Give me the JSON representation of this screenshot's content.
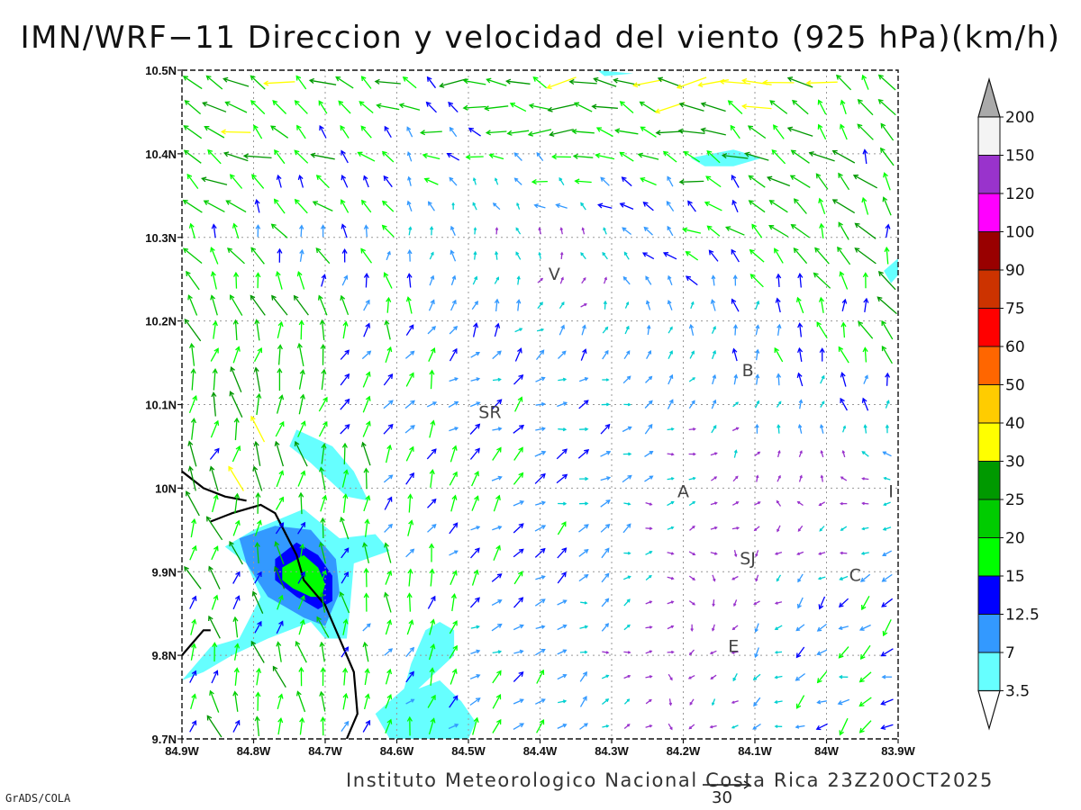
{
  "title": "IMN/WRF−11 Direccion y velocidad del viento (925 hPa)(km/h)",
  "footer": {
    "credit": "Instituto Meteorologico Nacional Costa Rica 23Z20OCT2025",
    "software": "GrADS/COLA",
    "reference_vector_label": "30"
  },
  "chart_data": {
    "type": "vector-field",
    "title": "IMN/WRF−11 Direccion y velocidad del viento (925 hPa)(km/h)",
    "x_ticks": [
      "84.9W",
      "84.8W",
      "84.7W",
      "84.6W",
      "84.5W",
      "84.4W",
      "84.3W",
      "84.2W",
      "84.1W",
      "84W",
      "83.9W"
    ],
    "y_ticks": [
      "10.5N",
      "10.4N",
      "10.3N",
      "10.2N",
      "10.1N",
      "10N",
      "9.9N",
      "9.8N",
      "9.7N"
    ],
    "xlim": [
      -84.9,
      -83.9
    ],
    "ylim": [
      9.7,
      10.5
    ],
    "grid": true,
    "reference_vector": 30,
    "colorbar": {
      "levels": [
        "200",
        "150",
        "120",
        "100",
        "90",
        "75",
        "60",
        "50",
        "40",
        "30",
        "25",
        "20",
        "15",
        "12.5",
        "7",
        "3.5"
      ],
      "colors": [
        "#f4f4f4",
        "#9933cc",
        "#ff00ff",
        "#990000",
        "#cc3300",
        "#ff0000",
        "#ff6600",
        "#ffcc00",
        "#ffff00",
        "#009900",
        "#00cc00",
        "#00ff00",
        "#0000ff",
        "#3399ff",
        "#66ffff"
      ],
      "top_color": "#aaaaaa",
      "bottom_color": "#ffffff"
    },
    "labels": [
      {
        "text": "V",
        "lon": -84.38,
        "lat": 10.255
      },
      {
        "text": "B",
        "lon": -84.11,
        "lat": 10.14
      },
      {
        "text": "SR",
        "lon": -84.47,
        "lat": 10.09
      },
      {
        "text": "A",
        "lon": -84.2,
        "lat": 9.995
      },
      {
        "text": "I",
        "lon": -83.91,
        "lat": 9.995
      },
      {
        "text": "SJ",
        "lon": -84.11,
        "lat": 9.915
      },
      {
        "text": "C",
        "lon": -83.96,
        "lat": 9.895
      },
      {
        "text": "E",
        "lon": -84.13,
        "lat": 9.81
      }
    ],
    "contours": [
      {
        "level": "3.5",
        "color": "#66ffff",
        "polygons": [
          [
            [
              -84.9,
              9.77
            ],
            [
              -84.86,
              9.81
            ],
            [
              -84.82,
              9.82
            ],
            [
              -84.79,
              9.87
            ],
            [
              -84.81,
              9.91
            ],
            [
              -84.84,
              9.93
            ],
            [
              -84.8,
              9.95
            ],
            [
              -84.73,
              9.975
            ],
            [
              -84.68,
              9.94
            ],
            [
              -84.63,
              9.945
            ],
            [
              -84.61,
              9.925
            ],
            [
              -84.66,
              9.91
            ],
            [
              -84.665,
              9.86
            ],
            [
              -84.67,
              9.82
            ],
            [
              -84.7,
              9.82
            ],
            [
              -84.72,
              9.84
            ],
            [
              -84.78,
              9.82
            ],
            [
              -84.83,
              9.8
            ],
            [
              -84.87,
              9.78
            ]
          ],
          [
            [
              -84.74,
              10.07
            ],
            [
              -84.69,
              10.05
            ],
            [
              -84.66,
              10.02
            ],
            [
              -84.64,
              9.985
            ],
            [
              -84.67,
              9.99
            ],
            [
              -84.72,
              10.03
            ],
            [
              -84.75,
              10.05
            ]
          ],
          [
            [
              -84.57,
              9.76
            ],
            [
              -84.54,
              9.77
            ],
            [
              -84.51,
              9.745
            ],
            [
              -84.49,
              9.72
            ],
            [
              -84.5,
              9.7
            ],
            [
              -84.61,
              9.7
            ],
            [
              -84.63,
              9.73
            ],
            [
              -84.59,
              9.76
            ],
            [
              -84.58,
              9.79
            ],
            [
              -84.56,
              9.83
            ],
            [
              -84.54,
              9.84
            ],
            [
              -84.52,
              9.83
            ],
            [
              -84.52,
              9.8
            ]
          ],
          [
            [
              -84.19,
              10.395
            ],
            [
              -84.13,
              10.405
            ],
            [
              -84.09,
              10.395
            ],
            [
              -84.13,
              10.385
            ],
            [
              -84.17,
              10.385
            ]
          ],
          [
            [
              -84.32,
              10.5
            ],
            [
              -84.27,
              10.496
            ],
            [
              -84.31,
              10.493
            ]
          ],
          [
            [
              -83.91,
              10.245
            ],
            [
              -83.9,
              10.255
            ],
            [
              -83.9,
              10.275
            ],
            [
              -83.92,
              10.26
            ]
          ]
        ]
      },
      {
        "level": "7",
        "color": "#3399ff",
        "polygons": [
          [
            [
              -84.82,
              9.94
            ],
            [
              -84.77,
              9.955
            ],
            [
              -84.72,
              9.95
            ],
            [
              -84.685,
              9.915
            ],
            [
              -84.68,
              9.875
            ],
            [
              -84.7,
              9.835
            ],
            [
              -84.73,
              9.845
            ],
            [
              -84.78,
              9.87
            ],
            [
              -84.81,
              9.91
            ]
          ]
        ]
      },
      {
        "level": "12.5",
        "color": "#0000ff",
        "polygons": [
          [
            [
              -84.77,
              9.915
            ],
            [
              -84.74,
              9.935
            ],
            [
              -84.71,
              9.92
            ],
            [
              -84.69,
              9.895
            ],
            [
              -84.69,
              9.865
            ],
            [
              -84.71,
              9.855
            ],
            [
              -84.74,
              9.87
            ],
            [
              -84.77,
              9.89
            ]
          ]
        ]
      },
      {
        "level": "15",
        "color": "#00ff00",
        "polygons": [
          [
            [
              -84.76,
              9.905
            ],
            [
              -84.73,
              9.92
            ],
            [
              -84.71,
              9.905
            ],
            [
              -84.7,
              9.885
            ],
            [
              -84.705,
              9.87
            ],
            [
              -84.72,
              9.87
            ],
            [
              -84.745,
              9.88
            ],
            [
              -84.76,
              9.89
            ]
          ]
        ]
      }
    ],
    "coastlines": [
      [
        [
          -84.9,
          10.02
        ],
        [
          -84.87,
          10.0
        ],
        [
          -84.84,
          9.99
        ],
        [
          -84.81,
          9.985
        ]
      ],
      [
        [
          -84.86,
          9.96
        ],
        [
          -84.83,
          9.97
        ],
        [
          -84.79,
          9.98
        ],
        [
          -84.77,
          9.97
        ],
        [
          -84.74,
          9.92
        ],
        [
          -84.73,
          9.89
        ],
        [
          -84.7,
          9.86
        ],
        [
          -84.68,
          9.82
        ],
        [
          -84.66,
          9.78
        ],
        [
          -84.655,
          9.73
        ],
        [
          -84.67,
          9.7
        ]
      ],
      [
        [
          -84.9,
          9.8
        ],
        [
          -84.87,
          9.83
        ],
        [
          -84.86,
          9.83
        ]
      ]
    ],
    "wind_regions": [
      {
        "name": "northwest-ne",
        "lon": [
          -84.9,
          -84.65
        ],
        "lat": [
          10.3,
          10.5
        ],
        "u": -10.0,
        "v": 3.0
      },
      {
        "name": "north-strong-ne",
        "lon": [
          -84.65,
          -83.9
        ],
        "lat": [
          10.35,
          10.5
        ],
        "u": -14.0,
        "v": 1.5
      },
      {
        "name": "west-upslope",
        "lon": [
          -84.9,
          -84.6
        ],
        "lat": [
          10.1,
          10.3
        ],
        "u": 3.0,
        "v": 9.0
      },
      {
        "name": "central-north",
        "lon": [
          -84.6,
          -84.2
        ],
        "lat": [
          10.15,
          10.35
        ],
        "u": 6.0,
        "v": 1.0
      },
      {
        "name": "central-east",
        "lon": [
          -84.2,
          -83.9
        ],
        "lat": [
          10.15,
          10.35
        ],
        "u": -2.0,
        "v": 8.0
      },
      {
        "name": "middle-calm",
        "lon": [
          -84.6,
          -83.9
        ],
        "lat": [
          9.95,
          10.15
        ],
        "u": 4.5,
        "v": 0.5
      },
      {
        "name": "southwest",
        "lon": [
          -84.9,
          -84.6
        ],
        "lat": [
          9.7,
          10.1
        ],
        "u": -1.0,
        "v": 7.5
      },
      {
        "name": "south-valley",
        "lon": [
          -84.6,
          -84.2
        ],
        "lat": [
          9.7,
          9.95
        ],
        "u": 5.0,
        "v": 2.5
      },
      {
        "name": "southeast",
        "lon": [
          -84.2,
          -83.9
        ],
        "lat": [
          9.7,
          9.95
        ],
        "u": -5.0,
        "v": -3.0
      }
    ],
    "wind_grid": {
      "nx": 33,
      "ny": 27
    }
  }
}
